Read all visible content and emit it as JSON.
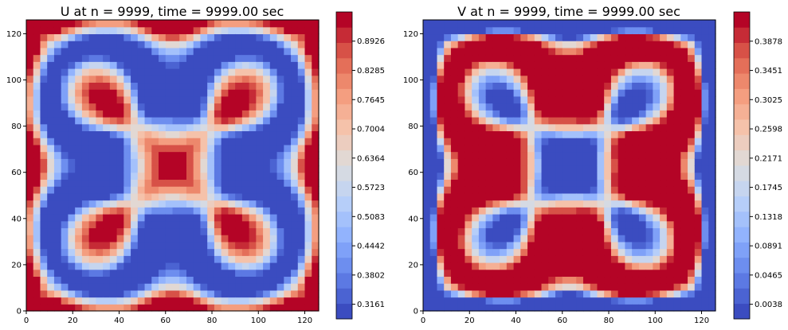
{
  "chart_data": [
    {
      "type": "heatmap",
      "title": "U at n = 9999, time = 9999.00 sec",
      "xlabel": "",
      "ylabel": "",
      "xlim": [
        0,
        126
      ],
      "ylim": [
        0,
        126
      ],
      "xticks": [
        "0",
        "20",
        "40",
        "60",
        "80",
        "100",
        "120"
      ],
      "yticks": [
        "0",
        "20",
        "40",
        "60",
        "80",
        "100",
        "120"
      ],
      "colormap": "coolwarm",
      "levels": 20,
      "colorbar_range": [
        0.2841,
        0.9566
      ],
      "colorbar_ticks": [
        "0.3161",
        "0.3802",
        "0.4442",
        "0.5083",
        "0.5723",
        "0.6364",
        "0.7004",
        "0.7645",
        "0.8285",
        "0.8926"
      ]
    },
    {
      "type": "heatmap",
      "title": "V at n = 9999, time = 9999.00 sec",
      "xlabel": "",
      "ylabel": "",
      "xlim": [
        0,
        126
      ],
      "ylim": [
        0,
        126
      ],
      "xticks": [
        "0",
        "20",
        "40",
        "60",
        "80",
        "100",
        "120"
      ],
      "yticks": [
        "0",
        "20",
        "40",
        "60",
        "80",
        "100",
        "120"
      ],
      "colormap": "coolwarm",
      "levels": 20,
      "colorbar_range": [
        -0.0175,
        0.4305
      ],
      "colorbar_ticks": [
        "0.0038",
        "0.0465",
        "0.0891",
        "0.1318",
        "0.1745",
        "0.2171",
        "0.2598",
        "0.3025",
        "0.3451",
        "0.3878"
      ]
    }
  ]
}
